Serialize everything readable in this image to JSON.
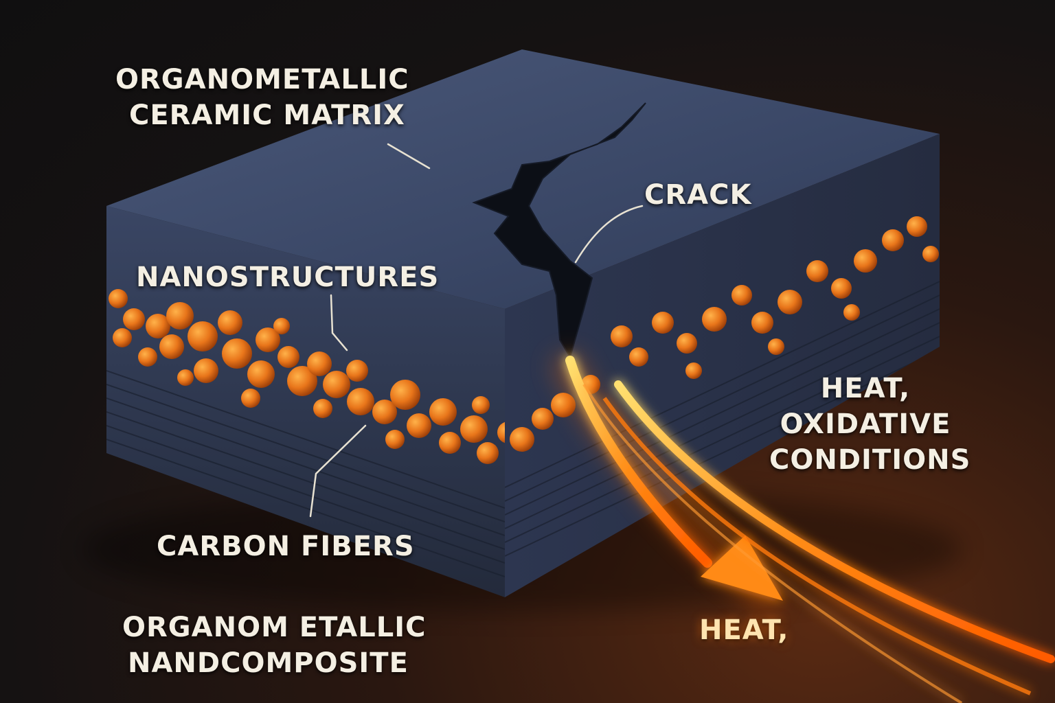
{
  "labels": {
    "matrix": [
      "ORGANOMETALLIC",
      "CERAMIC MATRIX"
    ],
    "crack": "CRACK",
    "nanostructures": "NANOSTRUCTURES",
    "carbon_fibers": "CARBON FIBERS",
    "heat_conditions": [
      "HEAT,",
      "OXIDATIVE",
      "CONDITIONS"
    ],
    "heat": "HEAT,",
    "composite": [
      "ORGANOM ETALLIC",
      "NANDCOMPOSITE"
    ]
  },
  "colors": {
    "block_top": "#3a4766",
    "block_side": "#2a3349",
    "particle": "#e8751a",
    "heat": "#ff7a10",
    "label": "#f4efe3"
  }
}
